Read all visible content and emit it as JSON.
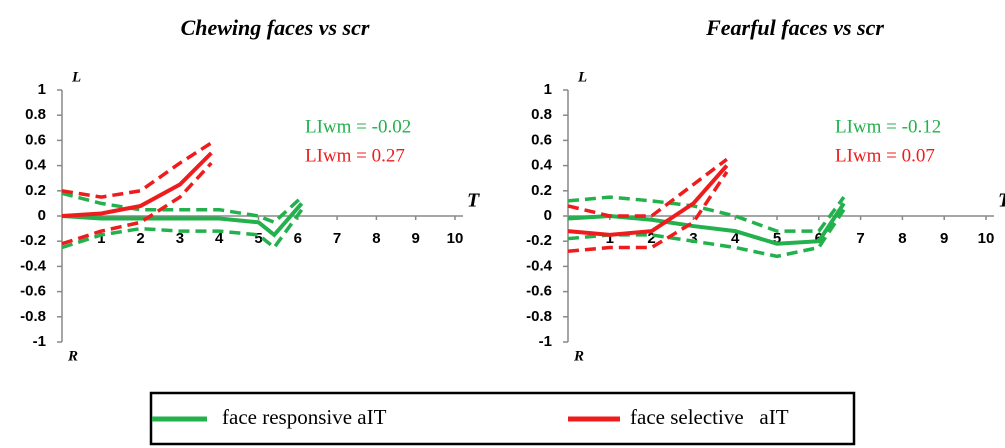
{
  "chart_data": [
    {
      "type": "line",
      "title": "Chewing faces vs scr",
      "y_label_top": "L",
      "y_label_bottom": "R",
      "x_label": "T",
      "xlim": [
        0,
        10
      ],
      "xticks": [
        1,
        2,
        3,
        4,
        5,
        6,
        7,
        8,
        9,
        10
      ],
      "ylim": [
        -1,
        1
      ],
      "yticks": [
        1,
        0.8,
        0.6,
        0.4,
        0.2,
        0,
        -0.2,
        -0.4,
        -0.6,
        -0.8,
        -1
      ],
      "annotations": [
        {
          "text": "LIwm = -0.02",
          "color": "#22b14c"
        },
        {
          "text": "LIwm =  0.27",
          "color": "#ee1c1c"
        }
      ],
      "series": [
        {
          "name": "face responsive aIT",
          "color": "#22b14c",
          "x": [
            0,
            1,
            2,
            3,
            4,
            5,
            5.4,
            6.1
          ],
          "values": [
            0,
            -0.02,
            -0.02,
            -0.02,
            -0.02,
            -0.05,
            -0.15,
            0.1
          ],
          "upper": [
            0.18,
            0.1,
            0.05,
            0.05,
            0.05,
            0,
            -0.05,
            0.15
          ],
          "lower": [
            -0.25,
            -0.15,
            -0.1,
            -0.12,
            -0.12,
            -0.15,
            -0.25,
            0.05
          ]
        },
        {
          "name": "face selective   aIT",
          "color": "#ee1c1c",
          "x": [
            0,
            1,
            2,
            3,
            3.8
          ],
          "values": [
            0,
            0.02,
            0.08,
            0.25,
            0.5
          ],
          "upper": [
            0.2,
            0.15,
            0.2,
            0.42,
            0.58
          ],
          "lower": [
            -0.22,
            -0.12,
            -0.05,
            0.15,
            0.42
          ]
        }
      ]
    },
    {
      "type": "line",
      "title": "Fearful faces vs scr",
      "y_label_top": "L",
      "y_label_bottom": "R",
      "x_label": "T",
      "xlim": [
        0,
        10
      ],
      "xticks": [
        1,
        2,
        3,
        4,
        5,
        6,
        7,
        8,
        9,
        10
      ],
      "ylim": [
        -1,
        1
      ],
      "yticks": [
        1,
        0.8,
        0.6,
        0.4,
        0.2,
        0,
        -0.2,
        -0.4,
        -0.6,
        -0.8,
        -1
      ],
      "annotations": [
        {
          "text": "LIwm = -0.12",
          "color": "#22b14c"
        },
        {
          "text": "LIwm =  0.07",
          "color": "#ee1c1c"
        }
      ],
      "series": [
        {
          "name": "face responsive aIT",
          "color": "#22b14c",
          "x": [
            0,
            1,
            2,
            3,
            4,
            5,
            6,
            6.6
          ],
          "values": [
            -0.02,
            0,
            -0.03,
            -0.08,
            -0.12,
            -0.22,
            -0.2,
            0.1
          ],
          "upper": [
            0.12,
            0.15,
            0.12,
            0.08,
            0,
            -0.12,
            -0.12,
            0.15
          ],
          "lower": [
            -0.18,
            -0.15,
            -0.15,
            -0.2,
            -0.25,
            -0.32,
            -0.25,
            0.05
          ]
        },
        {
          "name": "face selective   aIT",
          "color": "#ee1c1c",
          "x": [
            0,
            1,
            2,
            3,
            3.8
          ],
          "values": [
            -0.12,
            -0.15,
            -0.12,
            0.1,
            0.4
          ],
          "upper": [
            0.08,
            0,
            0,
            0.25,
            0.45
          ],
          "lower": [
            -0.28,
            -0.25,
            -0.25,
            -0.05,
            0.35
          ]
        }
      ]
    }
  ]
}
